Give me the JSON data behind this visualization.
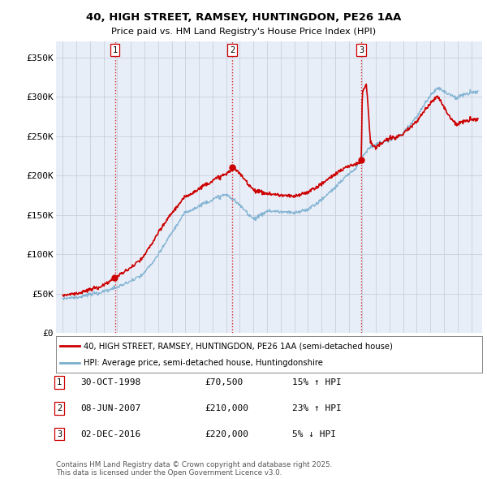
{
  "title1": "40, HIGH STREET, RAMSEY, HUNTINGDON, PE26 1AA",
  "title2": "Price paid vs. HM Land Registry's House Price Index (HPI)",
  "ylim": [
    0,
    370000
  ],
  "yticks": [
    0,
    50000,
    100000,
    150000,
    200000,
    250000,
    300000,
    350000
  ],
  "ytick_labels": [
    "£0",
    "£50K",
    "£100K",
    "£150K",
    "£200K",
    "£250K",
    "£300K",
    "£350K"
  ],
  "xlim_start": 1994.5,
  "xlim_end": 2025.8,
  "transactions": [
    {
      "year": 1998.83,
      "price": 70500,
      "label": "1"
    },
    {
      "year": 2007.44,
      "price": 210000,
      "label": "2"
    },
    {
      "year": 2016.92,
      "price": 220000,
      "label": "3"
    }
  ],
  "vline_color": "#cc0000",
  "paid_color": "#cc0000",
  "hpi_color": "#7aafcf",
  "legend_paid": "40, HIGH STREET, RAMSEY, HUNTINGDON, PE26 1AA (semi-detached house)",
  "legend_hpi": "HPI: Average price, semi-detached house, Huntingdonshire",
  "table_rows": [
    {
      "num": "1",
      "date": "30-OCT-1998",
      "price": "£70,500",
      "change": "15% ↑ HPI"
    },
    {
      "num": "2",
      "date": "08-JUN-2007",
      "price": "£210,000",
      "change": "23% ↑ HPI"
    },
    {
      "num": "3",
      "date": "02-DEC-2016",
      "price": "£220,000",
      "change": "5% ↓ HPI"
    }
  ],
  "footer": "Contains HM Land Registry data © Crown copyright and database right 2025.\nThis data is licensed under the Open Government Licence v3.0.",
  "bg_color": "#ffffff",
  "plot_bg_color": "#e8eef8",
  "grid_color": "#c8d0dc"
}
